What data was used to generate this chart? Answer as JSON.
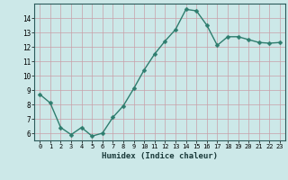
{
  "x": [
    0,
    1,
    2,
    3,
    4,
    5,
    6,
    7,
    8,
    9,
    10,
    11,
    12,
    13,
    14,
    15,
    16,
    17,
    18,
    19,
    20,
    21,
    22,
    23
  ],
  "y": [
    8.7,
    8.1,
    6.4,
    5.9,
    6.4,
    5.8,
    6.0,
    7.1,
    7.9,
    9.1,
    10.4,
    11.5,
    12.4,
    13.2,
    14.6,
    14.5,
    13.5,
    12.1,
    12.7,
    12.7,
    12.5,
    12.3,
    12.25,
    12.3
  ],
  "line_color": "#2e7d6e",
  "bg_color": "#cce8e8",
  "grid_color_major": "#c8a0a8",
  "xlabel": "Humidex (Indice chaleur)",
  "ylim": [
    5.5,
    15.0
  ],
  "xlim": [
    -0.5,
    23.5
  ],
  "yticks": [
    6,
    7,
    8,
    9,
    10,
    11,
    12,
    13,
    14
  ],
  "xtick_labels": [
    "0",
    "1",
    "2",
    "3",
    "4",
    "5",
    "6",
    "7",
    "8",
    "9",
    "10",
    "11",
    "12",
    "13",
    "14",
    "15",
    "16",
    "17",
    "18",
    "19",
    "20",
    "21",
    "22",
    "23"
  ],
  "marker_size": 2.5,
  "line_width": 1.0
}
